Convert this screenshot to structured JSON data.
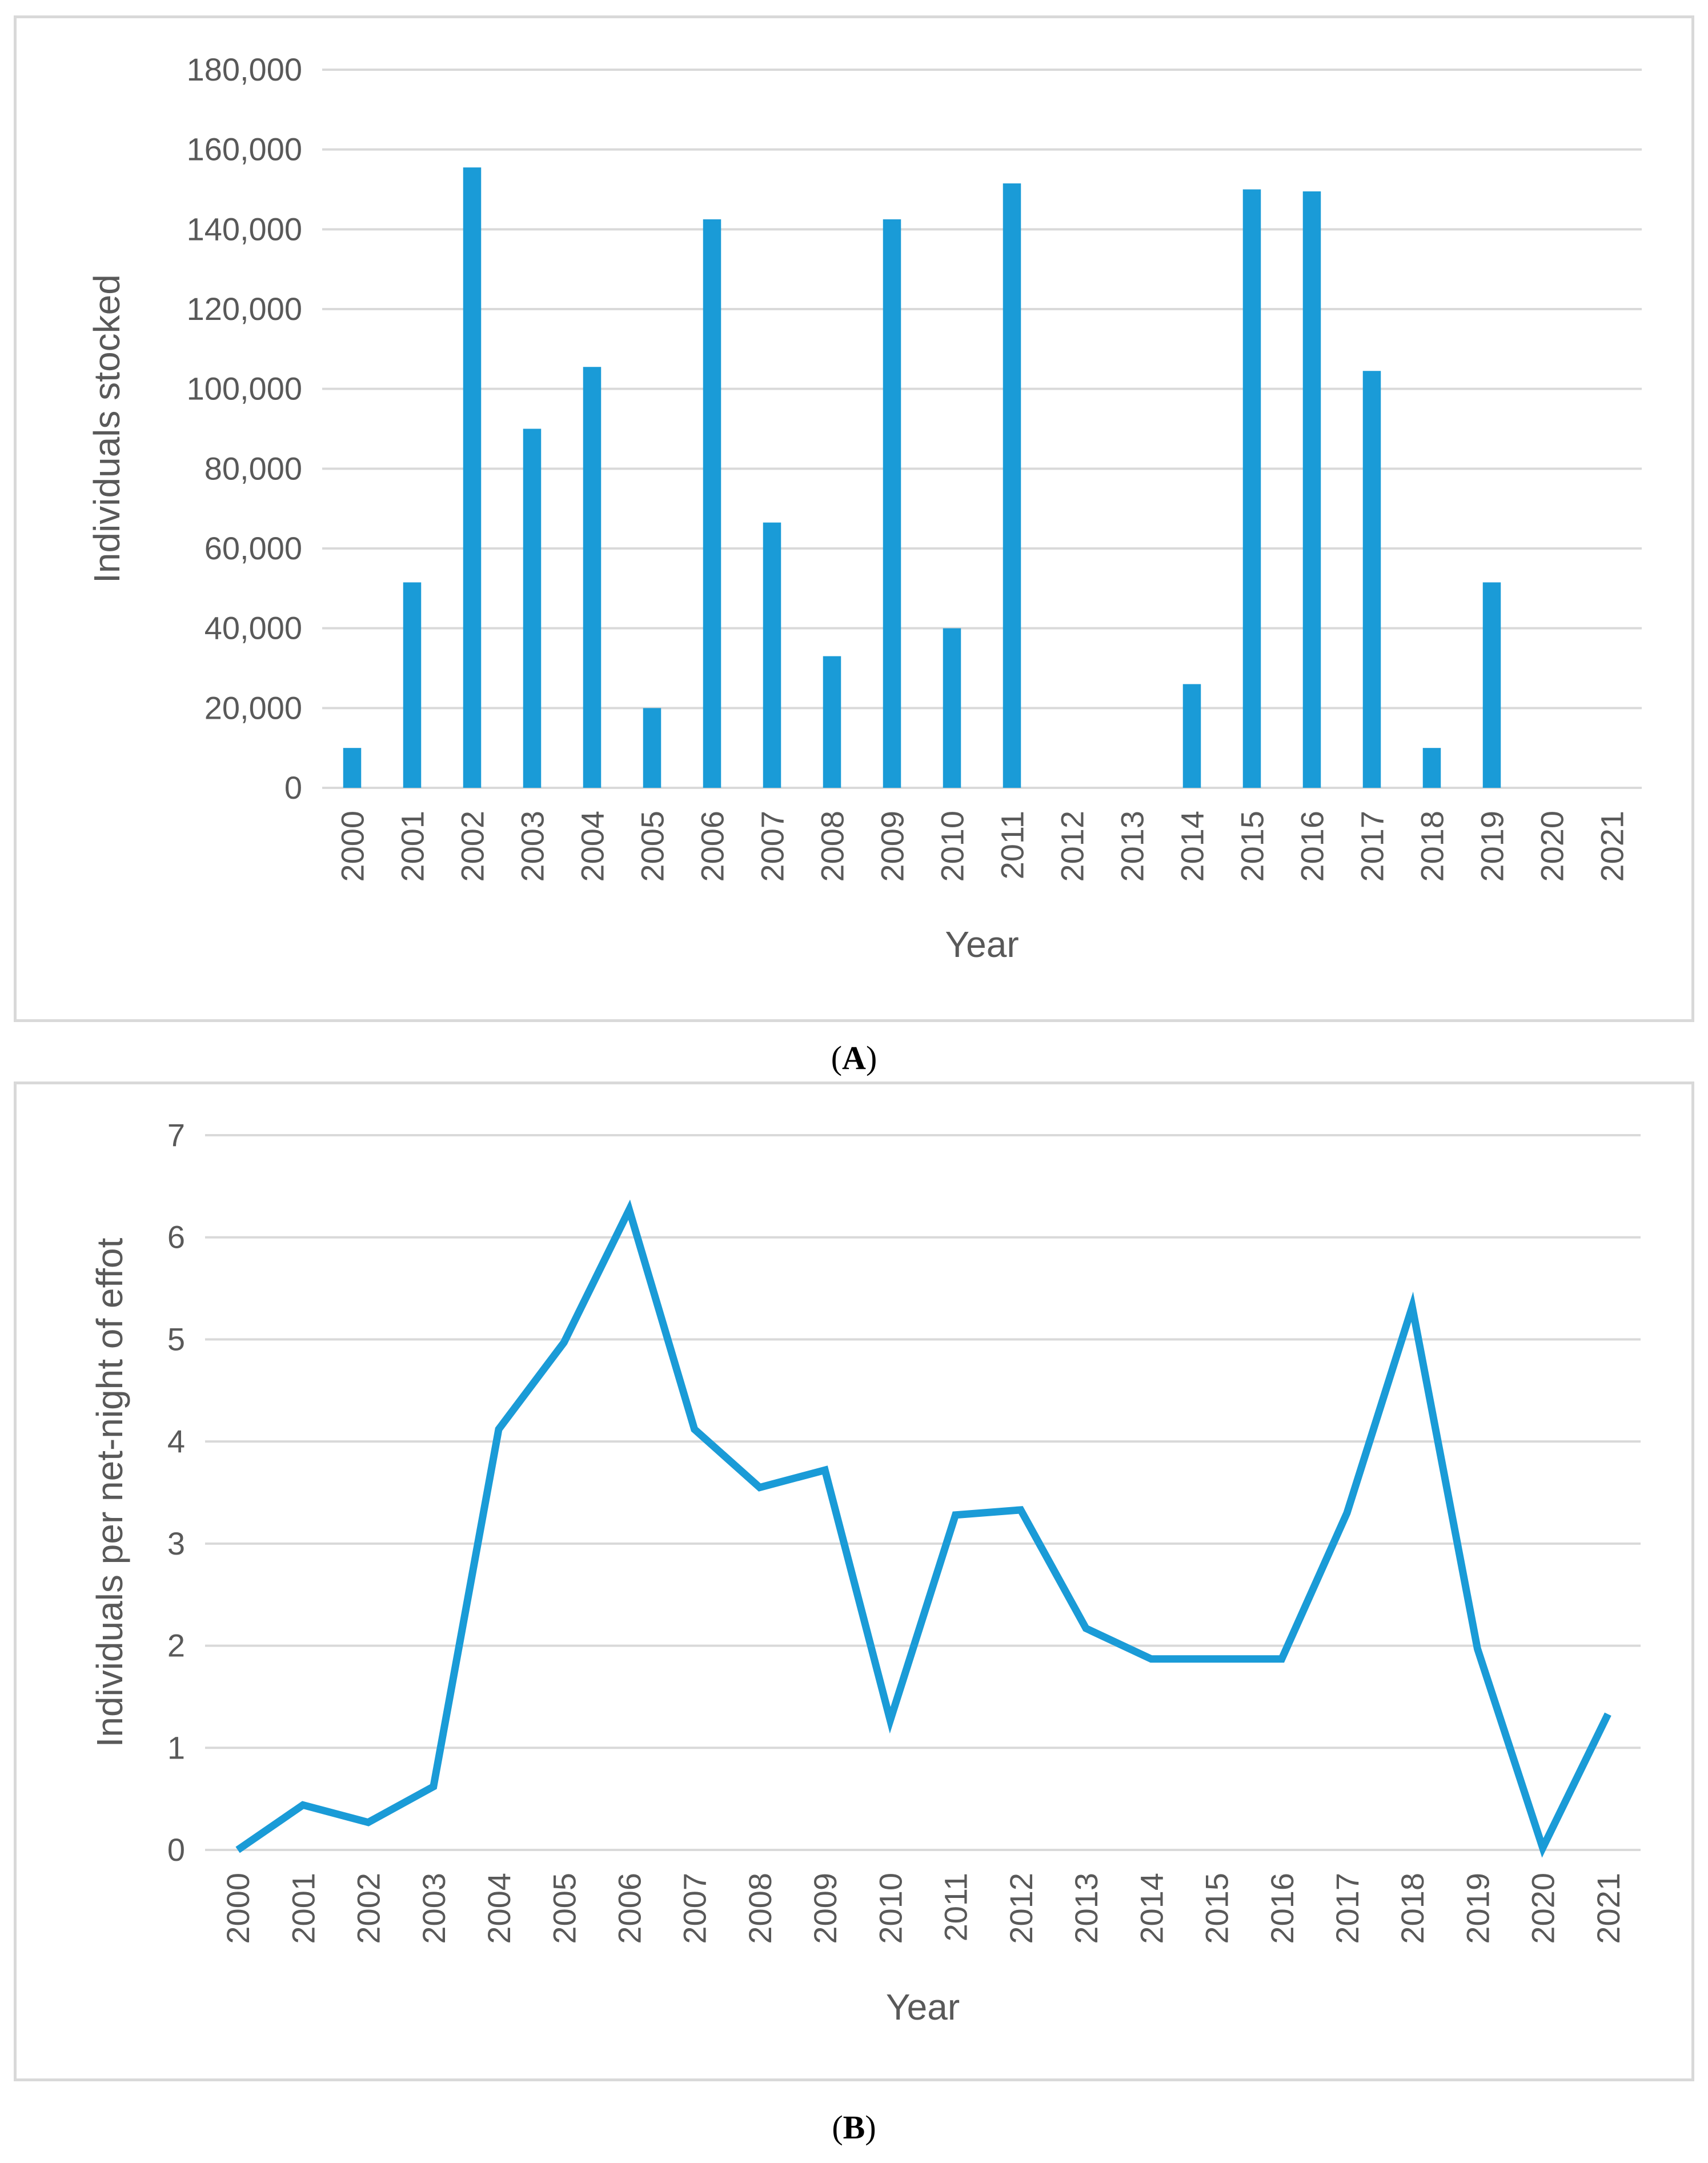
{
  "chart_data": [
    {
      "id": "A",
      "type": "bar",
      "title": "",
      "xlabel": "Year",
      "ylabel": "Individuals stocked",
      "ylim": [
        0,
        180000
      ],
      "yticks": [
        "0",
        "20,000",
        "40,000",
        "60,000",
        "80,000",
        "100,000",
        "120,000",
        "140,000",
        "160,000",
        "180,000"
      ],
      "categories": [
        "2000",
        "2001",
        "2002",
        "2003",
        "2004",
        "2005",
        "2006",
        "2007",
        "2008",
        "2009",
        "2010",
        "2011",
        "2012",
        "2013",
        "2014",
        "2015",
        "2016",
        "2017",
        "2018",
        "2019",
        "2020",
        "2021"
      ],
      "values": [
        10000,
        51500,
        155500,
        90000,
        105500,
        20000,
        142500,
        66500,
        33000,
        142500,
        40000,
        151500,
        0,
        0,
        26000,
        150000,
        149500,
        104500,
        10000,
        51500,
        0,
        0
      ],
      "color": "#1a9bd7",
      "grid": true,
      "caption_letter": "A"
    },
    {
      "id": "B",
      "type": "line",
      "title": "",
      "xlabel": "Year",
      "ylabel": "Individuals per net-night of effot",
      "ylim": [
        0,
        7
      ],
      "yticks": [
        "0",
        "1",
        "2",
        "3",
        "4",
        "5",
        "6",
        "7"
      ],
      "categories": [
        "2000",
        "2001",
        "2002",
        "2003",
        "2004",
        "2005",
        "2006",
        "2007",
        "2008",
        "2009",
        "2010",
        "2011",
        "2012",
        "2013",
        "2014",
        "2015",
        "2016",
        "2017",
        "2018",
        "2019",
        "2020",
        "2021"
      ],
      "values": [
        0,
        0.44,
        0.27,
        0.62,
        4.12,
        4.97,
        6.27,
        4.12,
        3.55,
        3.72,
        1.27,
        3.28,
        3.33,
        2.17,
        1.87,
        1.87,
        1.87,
        3.3,
        5.32,
        1.97,
        0.02,
        1.33
      ],
      "color": "#1a9bd7",
      "grid": true,
      "caption_letter": "B"
    }
  ]
}
